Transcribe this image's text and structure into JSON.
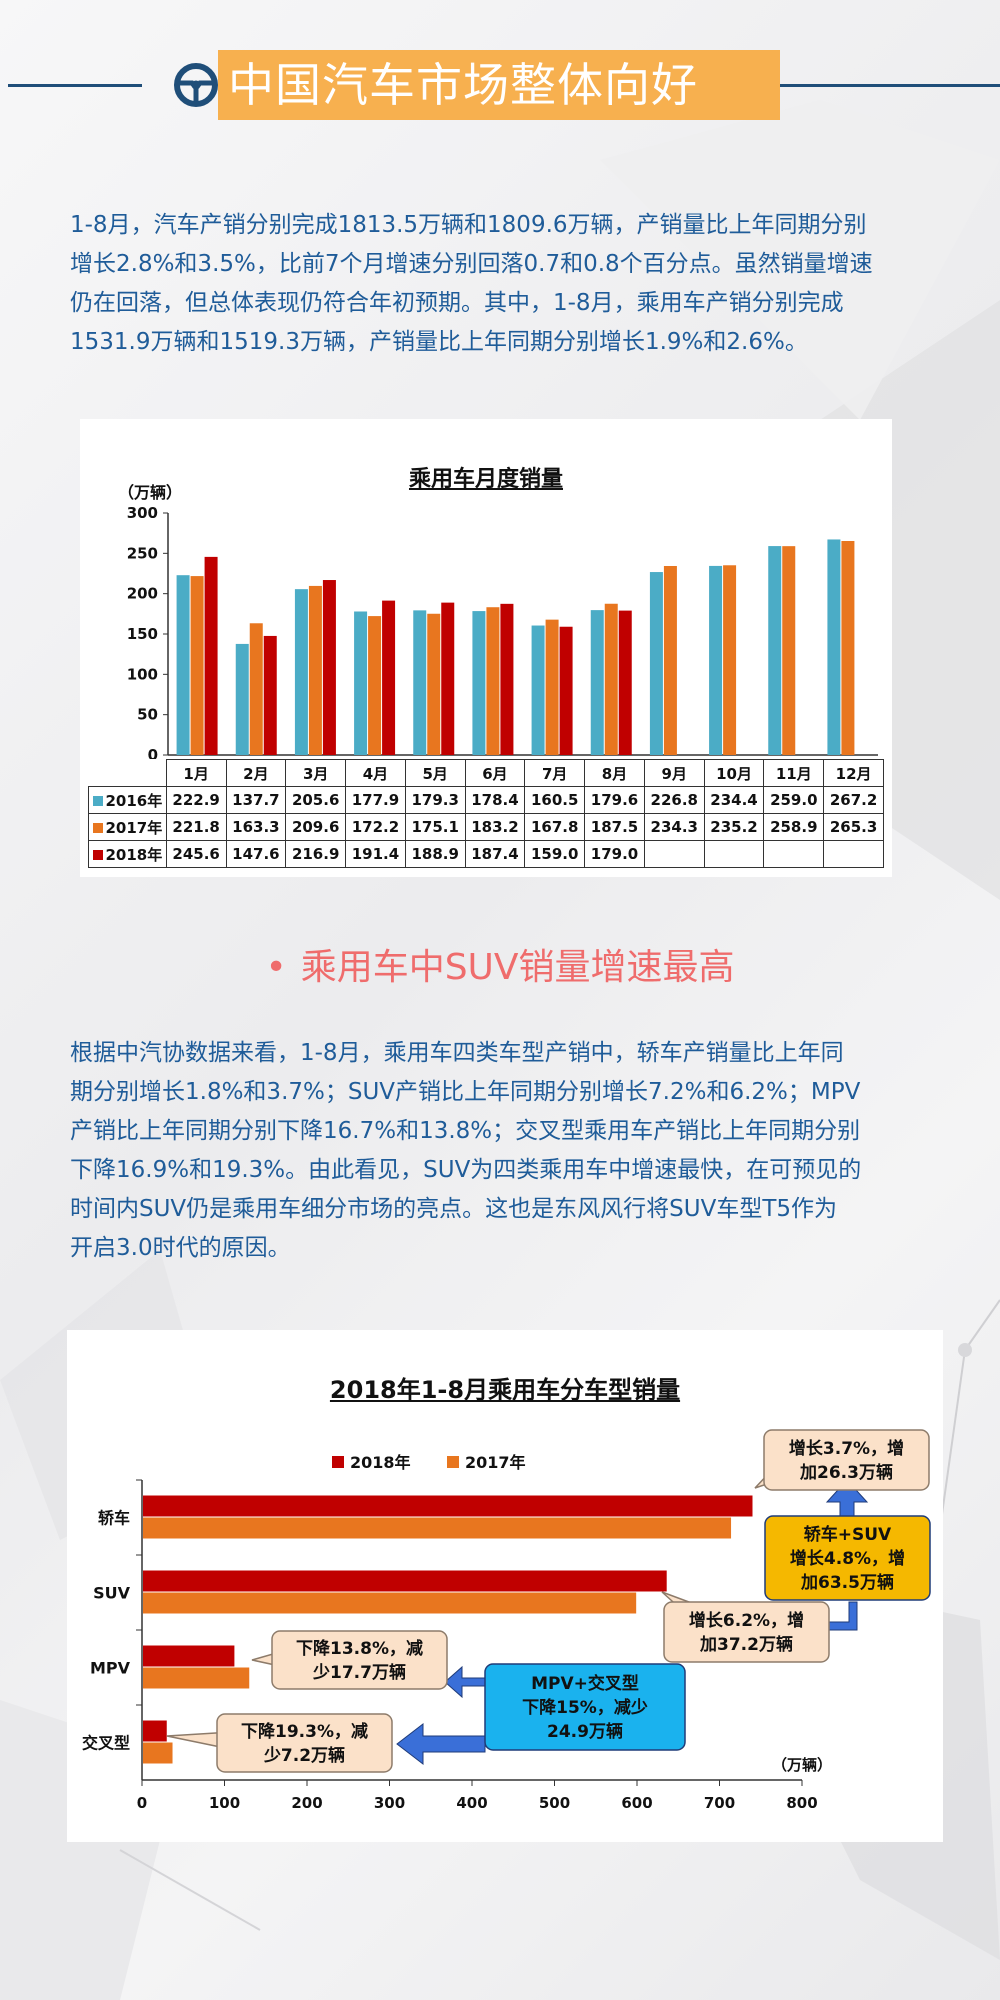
{
  "header": {
    "title": "中国汽车市场整体向好",
    "icon": "steering-wheel-icon"
  },
  "intro_paragraph": {
    "lines": [
      "1-8月，汽车产销分别完成1813.5万辆和1809.6万辆，产销量比上年同期分别",
      "增长2.8%和3.5%，比前7个月增速分别回落0.7和0.8个百分点。虽然销量增速",
      "仍在回落，但总体表现仍符合年初预期。其中，1-8月，乘用车产销分别完成",
      "1531.9万辆和1519.3万辆，产销量比上年同期分别增长1.9%和2.6%。"
    ]
  },
  "subheading": {
    "bullet": "•",
    "text": "乘用车中SUV销量增速最高"
  },
  "suv_paragraph": {
    "lines": [
      "根据中汽协数据来看，1-8月，乘用车四类车型产销中，轿车产销量比上年同",
      "期分别增长1.8%和3.7%；SUV产销比上年同期分别增长7.2%和6.2%；MPV",
      "产销比上年同期分别下降16.7%和13.8%；交叉型乘用车产销比上年同期分别",
      "下降16.9%和19.3%。由此看见，SUV为四类乘用车中增速最快，在可预见的",
      "时间内SUV仍是乘用车细分市场的亮点。这也是东风风行将SUV车型T5作为",
      "开启3.0时代的原因。"
    ]
  },
  "chart_data": [
    {
      "type": "bar",
      "title": "乘用车月度销量",
      "ylabel": "（万辆）",
      "ylim": [
        0,
        300
      ],
      "yticks": [
        0,
        50,
        100,
        150,
        200,
        250,
        300
      ],
      "grid": false,
      "legend_placement": "table-left",
      "categories": [
        "1月",
        "2月",
        "3月",
        "4月",
        "5月",
        "6月",
        "7月",
        "8月",
        "9月",
        "10月",
        "11月",
        "12月"
      ],
      "series": [
        {
          "name": "2016年",
          "color": "#4bacc6",
          "values": [
            222.9,
            137.7,
            205.6,
            177.9,
            179.3,
            178.4,
            160.5,
            179.6,
            226.8,
            234.4,
            259.0,
            267.2
          ]
        },
        {
          "name": "2017年",
          "color": "#e8761f",
          "values": [
            221.8,
            163.3,
            209.6,
            172.2,
            175.1,
            183.2,
            167.8,
            187.5,
            234.3,
            235.2,
            258.9,
            265.3
          ]
        },
        {
          "name": "2018年",
          "color": "#c00000",
          "values": [
            245.6,
            147.6,
            216.9,
            191.4,
            188.9,
            187.4,
            159.0,
            179.0,
            null,
            null,
            null,
            null
          ]
        }
      ],
      "table_labels": [
        [
          "222.9",
          "137.7",
          "205.6",
          "177.9",
          "179.3",
          "178.4",
          "160.5",
          "179.6",
          "226.8",
          "234.4",
          "259.0",
          "267.2"
        ],
        [
          "221.8",
          "163.3",
          "209.6",
          "172.2",
          "175.1",
          "183.2",
          "167.8",
          "187.5",
          "234.3",
          "235.2",
          "258.9",
          "265.3"
        ],
        [
          "245.6",
          "147.6",
          "216.9",
          "191.4",
          "188.9",
          "187.4",
          "159.0",
          "179.0",
          "",
          "",
          "",
          ""
        ]
      ]
    },
    {
      "type": "bar",
      "orientation": "horizontal",
      "title": "2018年1-8月乘用车分车型销量",
      "xlabel": "（万辆）",
      "xlim": [
        0,
        800
      ],
      "xticks": [
        0,
        100,
        200,
        300,
        400,
        500,
        600,
        700,
        800
      ],
      "grid": false,
      "legend_placement": "top",
      "categories": [
        "轿车",
        "SUV",
        "MPV",
        "交叉型"
      ],
      "series": [
        {
          "name": "2018年",
          "color": "#c00000",
          "values": [
            740,
            636,
            112,
            30
          ]
        },
        {
          "name": "2017年",
          "color": "#e8761f",
          "values": [
            714,
            599,
            130,
            37
          ]
        }
      ],
      "annotations": [
        {
          "id": "sedan",
          "lines": [
            "增长3.7%，增",
            "加26.3万辆"
          ],
          "style": "beige"
        },
        {
          "id": "suv",
          "lines": [
            "增长6.2%，增",
            "加37.2万辆"
          ],
          "style": "beige"
        },
        {
          "id": "sedan-suv",
          "lines": [
            "轿车+SUV",
            "增长4.8%，增",
            "加63.5万辆"
          ],
          "style": "yellow"
        },
        {
          "id": "mpv",
          "lines": [
            "下降13.8%，减",
            "少17.7万辆"
          ],
          "style": "beige"
        },
        {
          "id": "cross",
          "lines": [
            "下降19.3%，减",
            "少7.2万辆"
          ],
          "style": "beige"
        },
        {
          "id": "mpv-cross",
          "lines": [
            "MPV+交叉型",
            "下降15%，减少",
            "24.9万辆"
          ],
          "style": "blue"
        }
      ]
    }
  ]
}
